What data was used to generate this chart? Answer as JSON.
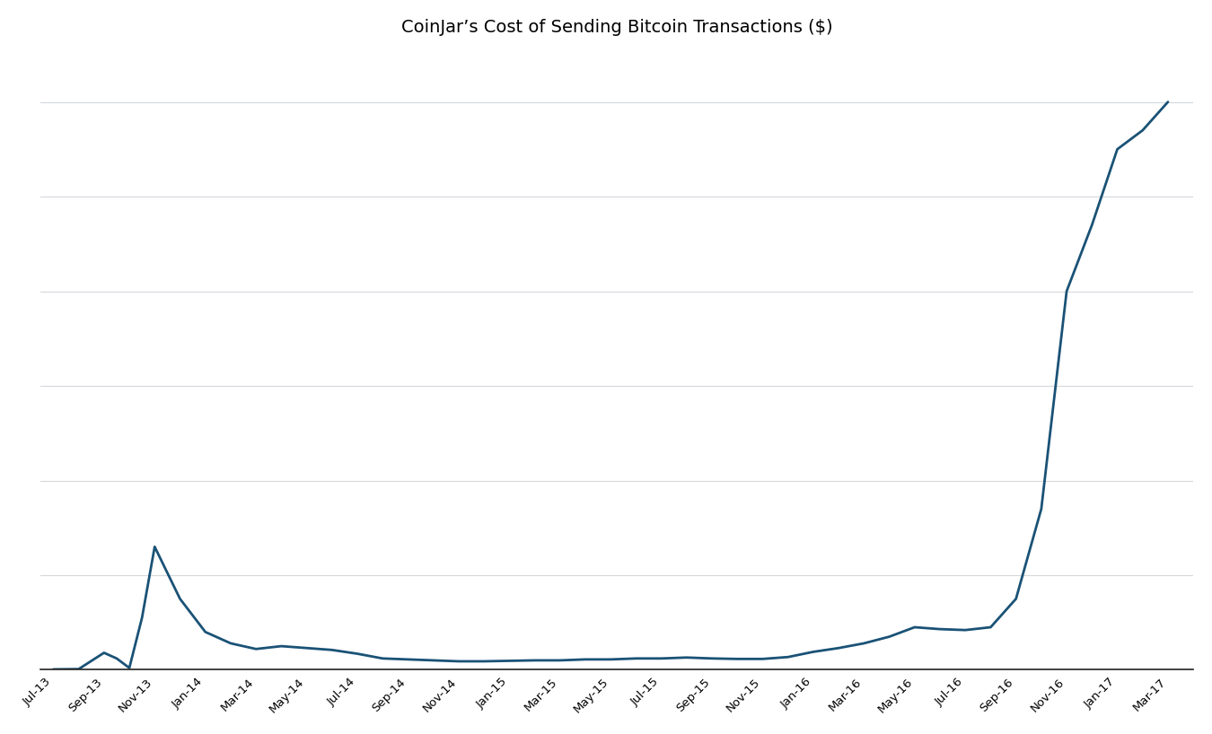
{
  "title": "CoinJar’s Cost of Sending Bitcoin Transactions ($)",
  "line_color": "#1a5276",
  "background_color": "#ffffff",
  "grid_color": "#d5d8dc",
  "title_fontsize": 14,
  "tick_fontsize": 9.5,
  "x_labels": [
    "Jul-13",
    "Sep-13",
    "Nov-13",
    "Jan-14",
    "Mar-14",
    "May-14",
    "Jul-14",
    "Sep-14",
    "Nov-14",
    "Jan-15",
    "Mar-15",
    "May-15",
    "Jul-15",
    "Sep-15",
    "Nov-15",
    "Jan-16",
    "Mar-16",
    "May-16",
    "Jul-16",
    "Sep-16",
    "Nov-16",
    "Jan-17",
    "Mar-17"
  ],
  "x_tick_positions": [
    0,
    2,
    4,
    6,
    8,
    10,
    12,
    14,
    16,
    18,
    20,
    22,
    24,
    26,
    28,
    30,
    32,
    34,
    36,
    38,
    40,
    42,
    44
  ],
  "data_x": [
    0,
    1,
    2,
    2.5,
    3,
    3.5,
    4,
    5,
    6,
    7,
    8,
    9,
    10,
    11,
    12,
    13,
    14,
    15,
    16,
    17,
    18,
    19,
    20,
    21,
    22,
    23,
    24,
    25,
    26,
    27,
    28,
    29,
    30,
    31,
    32,
    33,
    34,
    35,
    36,
    37,
    38,
    39,
    40,
    41,
    42,
    43,
    44
  ],
  "data_y": [
    0.05,
    0.08,
    1.8,
    1.2,
    0.2,
    5.5,
    13.0,
    7.5,
    4.0,
    2.8,
    2.2,
    2.5,
    2.3,
    2.1,
    1.7,
    1.2,
    1.1,
    1.0,
    0.9,
    0.9,
    0.95,
    1.0,
    1.0,
    1.1,
    1.1,
    1.2,
    1.2,
    1.3,
    1.2,
    1.15,
    1.15,
    1.35,
    1.9,
    2.3,
    2.8,
    3.5,
    4.5,
    4.3,
    4.2,
    4.5,
    7.5,
    17.0,
    40.0,
    47.0,
    55.0,
    57.0,
    60.0
  ],
  "ylim": [
    0,
    65
  ],
  "yticks": [
    0,
    10,
    20,
    30,
    40,
    50,
    60
  ],
  "xlim": [
    -0.5,
    45.0
  ]
}
